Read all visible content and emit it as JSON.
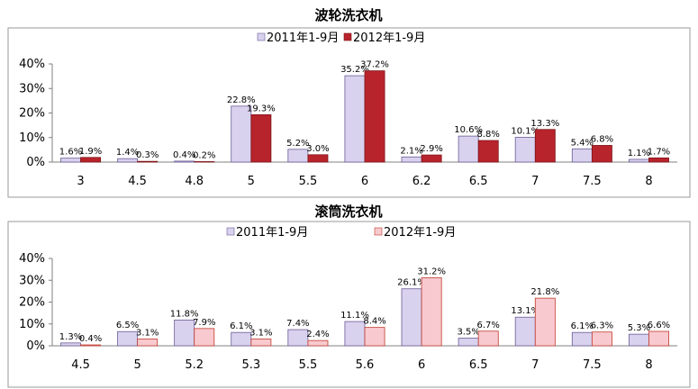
{
  "chart_data": [
    {
      "type": "bar",
      "title": "波轮洗衣机",
      "categories": [
        "3",
        "4.5",
        "4.8",
        "5",
        "5.5",
        "6",
        "6.2",
        "6.5",
        "7",
        "7.5",
        "8"
      ],
      "ylim": [
        0,
        40
      ],
      "yticks": [
        "0%",
        "10%",
        "20%",
        "30%",
        "40%"
      ],
      "legend_position": "top",
      "series": [
        {
          "name": "2011年1-9月",
          "color": "#D9D2EE",
          "stroke": "#6B5B95",
          "values": [
            1.6,
            1.4,
            0.4,
            22.8,
            5.2,
            35.2,
            2.1,
            10.6,
            10.1,
            5.4,
            1.1
          ],
          "labels": [
            "1.6%",
            "1.4%",
            "0.4%",
            "22.8%",
            "5.2%",
            "35.2%",
            "2.1%",
            "10.6%",
            "10.1%",
            "5.4%",
            "1.1%"
          ]
        },
        {
          "name": "2012年1-9月",
          "color": "#B8242C",
          "stroke": "#7F1419",
          "values": [
            1.9,
            0.3,
            0.2,
            19.3,
            3.0,
            37.2,
            2.9,
            8.8,
            13.3,
            6.8,
            1.7
          ],
          "labels": [
            "1.9%",
            "0.3%",
            "0.2%",
            "19.3%",
            "3.0%",
            "37.2%",
            "2.9%",
            "8.8%",
            "13.3%",
            "6.8%",
            "1.7%"
          ]
        }
      ]
    },
    {
      "type": "bar",
      "title": "滚筒洗衣机",
      "categories": [
        "4.5",
        "5",
        "5.2",
        "5.3",
        "5.5",
        "5.6",
        "6",
        "6.5",
        "7",
        "7.5",
        "8"
      ],
      "ylim": [
        0,
        40
      ],
      "yticks": [
        "0%",
        "10%",
        "20%",
        "30%",
        "40%"
      ],
      "legend_position": "top",
      "series": [
        {
          "name": "2011年1-9月",
          "color": "#D9D2EE",
          "stroke": "#6B5B95",
          "values": [
            1.3,
            6.5,
            11.8,
            6.1,
            7.4,
            11.1,
            26.1,
            3.5,
            13.1,
            6.1,
            5.3
          ],
          "labels": [
            "1.3%",
            "6.5%",
            "11.8%",
            "6.1%",
            "7.4%",
            "11.1%",
            "26.1%",
            "3.5%",
            "13.1%",
            "6.1%",
            "5.3%"
          ]
        },
        {
          "name": "2012年1-9月",
          "color": "#F8C9CF",
          "stroke": "#C0392B",
          "values": [
            0.4,
            3.1,
            7.9,
            3.1,
            2.4,
            8.4,
            31.2,
            6.7,
            21.8,
            6.3,
            6.6
          ],
          "labels": [
            "0.4%",
            "3.1%",
            "7.9%",
            "3.1%",
            "2.4%",
            "8.4%",
            "31.2%",
            "6.7%",
            "21.8%",
            "6.3%",
            "6.6%"
          ]
        }
      ]
    }
  ]
}
